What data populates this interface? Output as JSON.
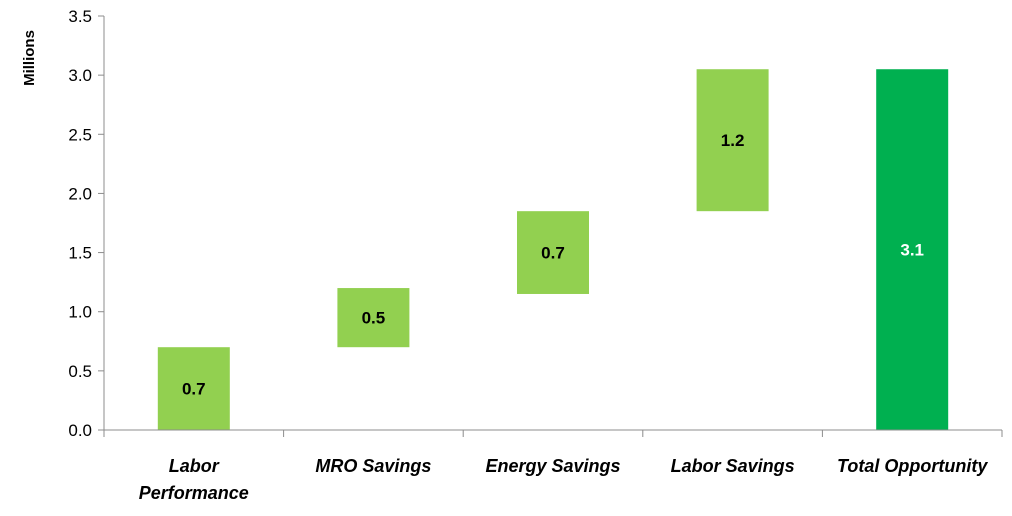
{
  "chart_data": {
    "type": "bar",
    "subtype": "waterfall",
    "title": "",
    "xlabel": "",
    "ylabel": "Millions",
    "ylim": [
      0,
      3.5
    ],
    "yticks": [
      "0.0",
      "0.5",
      "1.0",
      "1.5",
      "2.0",
      "2.5",
      "3.0",
      "3.5"
    ],
    "grid": false,
    "legend": "none",
    "categories": [
      [
        "Labor",
        "Performance"
      ],
      [
        "MRO Savings"
      ],
      [
        "Energy Savings"
      ],
      [
        "Labor Savings"
      ],
      [
        "Total Opportunity"
      ]
    ],
    "bars": [
      {
        "base": 0.0,
        "value": 0.7,
        "label": "0.7",
        "kind": "increment"
      },
      {
        "base": 0.7,
        "value": 0.5,
        "label": "0.5",
        "kind": "increment"
      },
      {
        "base": 1.15,
        "value": 0.7,
        "label": "0.7",
        "kind": "increment"
      },
      {
        "base": 1.85,
        "value": 1.2,
        "label": "1.2",
        "kind": "increment"
      },
      {
        "base": 0.0,
        "value": 3.05,
        "label": "3.1",
        "kind": "total"
      }
    ],
    "colors": {
      "increment": "#92d050",
      "total": "#00b050",
      "increment_label": "#000000",
      "total_label": "#ffffff",
      "axis": "#8c8c8c"
    }
  }
}
